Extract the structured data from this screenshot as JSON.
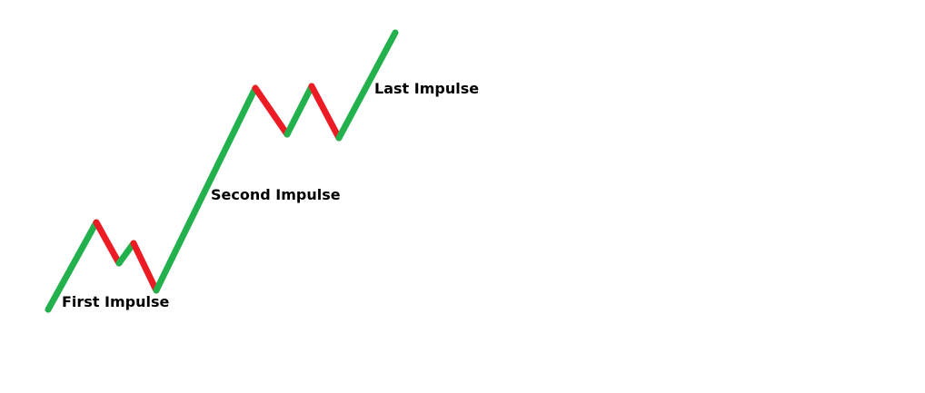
{
  "colors": {
    "up": "#22b14c",
    "down": "#ed1c24",
    "background": "#ffffff",
    "text": "#000000"
  },
  "labels": {
    "first": "First Impulse",
    "second": "Second Impulse",
    "last": "Last Impulse"
  },
  "segments": [
    {
      "name": "up-leg-1",
      "direction": "up"
    },
    {
      "name": "down-leg-1",
      "direction": "down"
    },
    {
      "name": "up-leg-2",
      "direction": "up"
    },
    {
      "name": "down-leg-2",
      "direction": "down"
    },
    {
      "name": "up-leg-3",
      "direction": "up"
    },
    {
      "name": "down-leg-3",
      "direction": "down"
    },
    {
      "name": "up-leg-4",
      "direction": "up"
    },
    {
      "name": "down-leg-4",
      "direction": "down"
    },
    {
      "name": "up-leg-5",
      "direction": "up"
    }
  ]
}
